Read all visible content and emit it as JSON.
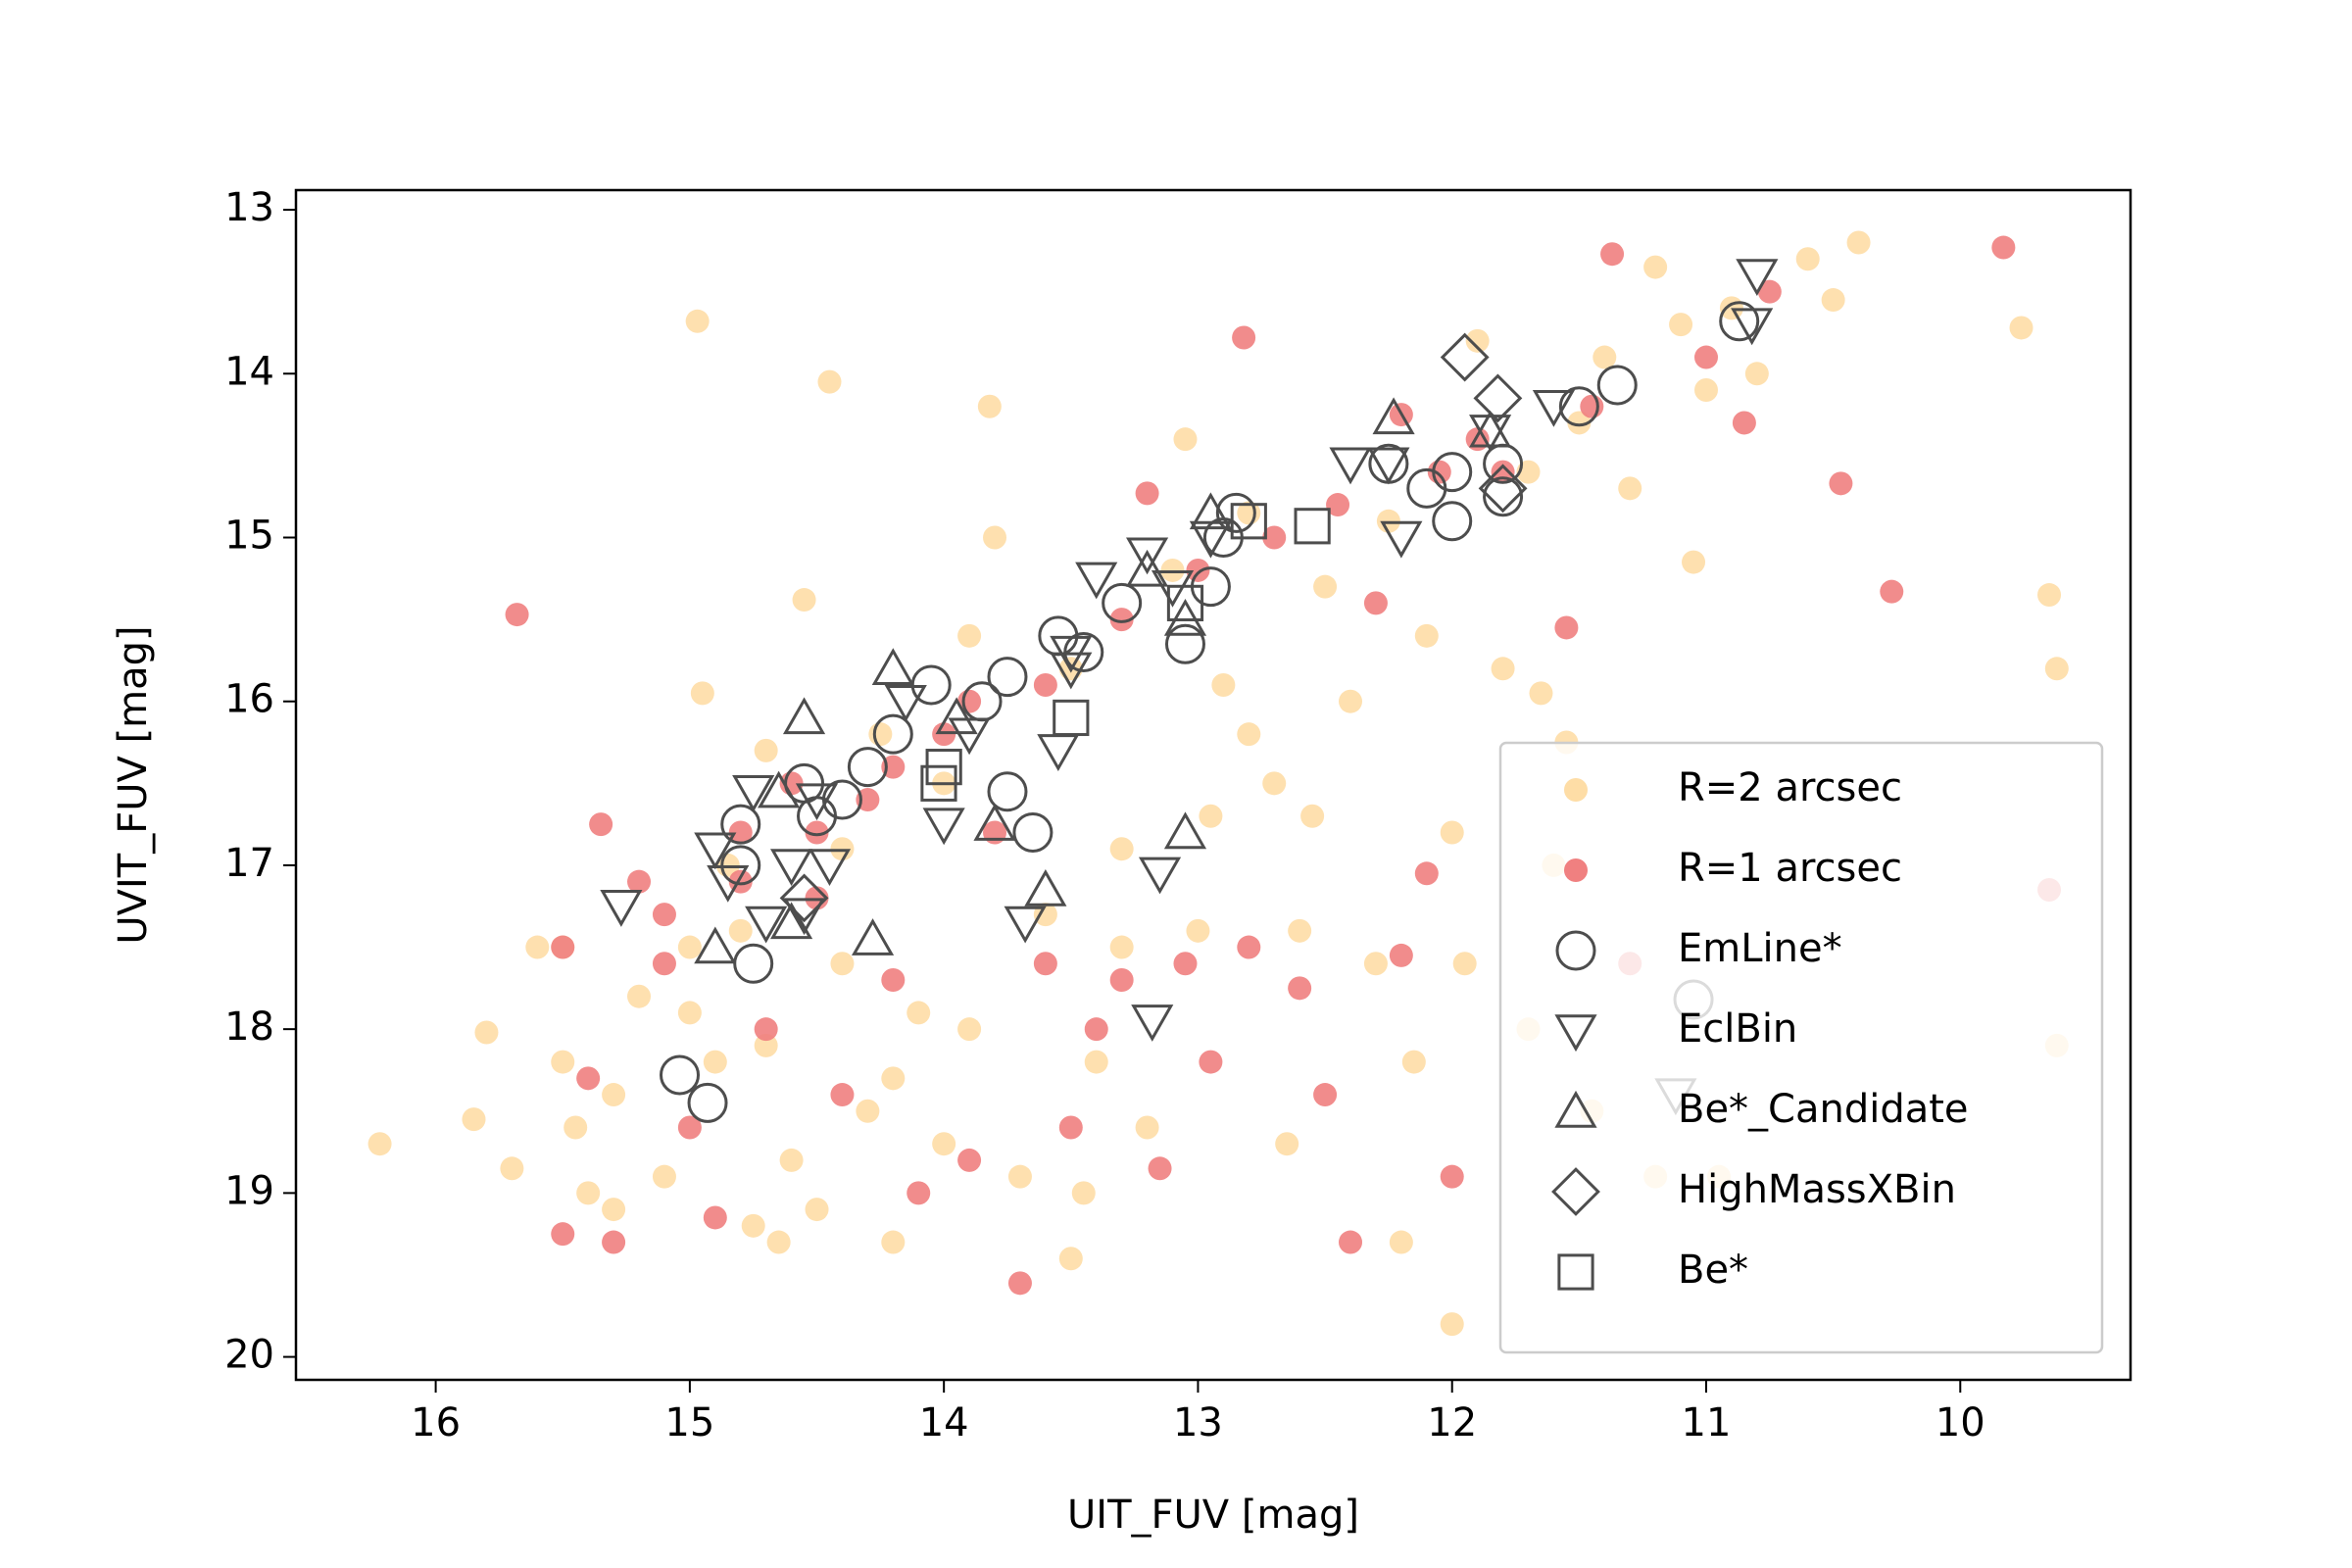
{
  "chart_data": {
    "type": "scatter",
    "xlabel": "UIT_FUV [mag]",
    "ylabel": "UVIT_FUV [mag]",
    "xlim": [
      16.55,
      9.33
    ],
    "ylim": [
      20.14,
      12.88
    ],
    "xticks": [
      16,
      15,
      14,
      13,
      12,
      11,
      10
    ],
    "yticks": [
      13,
      14,
      15,
      16,
      17,
      18,
      19,
      20
    ],
    "legend": "lower right",
    "series": [
      {
        "name": "R=2 arcsec",
        "color": "#fedda6",
        "marker": "dot",
        "x": [
          16.22,
          15.85,
          15.8,
          15.6,
          15.5,
          15.4,
          15.3,
          15.2,
          15.1,
          15.0,
          14.97,
          14.95,
          14.8,
          14.75,
          14.7,
          14.6,
          14.55,
          14.5,
          14.45,
          14.4,
          14.3,
          14.2,
          14.1,
          14.0,
          13.82,
          13.8,
          13.7,
          13.6,
          13.5,
          13.4,
          13.3,
          13.2,
          13.05,
          13.0,
          12.95,
          12.8,
          12.7,
          12.65,
          12.5,
          12.4,
          12.3,
          12.25,
          12.2,
          12.1,
          12.0,
          11.95,
          11.9,
          11.8,
          11.7,
          11.65,
          11.55,
          11.5,
          11.45,
          11.4,
          11.3,
          11.2,
          11.1,
          11.05,
          11.0,
          10.9,
          10.8,
          10.6,
          10.5,
          10.4,
          9.76,
          9.65,
          9.62,
          9.62,
          12.0,
          12.55,
          12.9,
          13.9,
          14.25,
          14.7,
          14.85,
          15.7,
          15.3,
          14.65,
          13.45,
          12.15,
          11.6,
          12.8,
          13.1,
          13.5,
          14.0,
          14.4,
          15.0,
          15.5,
          15.45,
          14.9,
          14.2,
          13.9,
          13.3,
          12.6,
          11.2,
          11.7,
          10.95
        ],
        "values": [
          18.7,
          18.55,
          18.02,
          17.5,
          18.2,
          19.0,
          18.4,
          17.8,
          18.9,
          17.9,
          13.68,
          15.95,
          17.4,
          19.2,
          18.1,
          18.8,
          15.38,
          19.1,
          14.05,
          17.6,
          18.5,
          19.3,
          17.9,
          18.7,
          14.2,
          15.0,
          18.9,
          17.3,
          19.4,
          18.2,
          16.9,
          18.6,
          14.4,
          17.4,
          16.7,
          14.85,
          16.5,
          18.7,
          15.3,
          16.0,
          17.6,
          14.9,
          19.3,
          15.6,
          16.8,
          17.6,
          13.8,
          15.8,
          14.6,
          15.95,
          16.25,
          14.3,
          18.5,
          13.9,
          14.7,
          13.35,
          13.7,
          15.15,
          14.1,
          13.6,
          14.0,
          13.3,
          13.55,
          13.2,
          13.72,
          15.35,
          15.8,
          18.1,
          19.8,
          16.7,
          15.9,
          15.6,
          16.2,
          16.3,
          17.0,
          18.85,
          19.1,
          19.3,
          19.0,
          18.2,
          17.0,
          16.2,
          15.2,
          15.8,
          16.5,
          16.9,
          17.5,
          17.5,
          18.6,
          18.2,
          18.3,
          18.0,
          17.5,
          17.4,
          18.9,
          18.0,
          18.9
        ]
      },
      {
        "name": "R=1 arcsec",
        "color": "#f08080",
        "marker": "dot",
        "x": [
          15.68,
          15.35,
          15.5,
          15.4,
          15.3,
          15.5,
          15.2,
          15.1,
          15.0,
          14.9,
          14.8,
          14.7,
          14.6,
          14.5,
          14.4,
          14.3,
          14.2,
          14.1,
          14.0,
          13.9,
          13.8,
          13.7,
          13.6,
          13.5,
          13.4,
          13.3,
          13.2,
          13.15,
          13.05,
          12.95,
          12.82,
          12.8,
          12.6,
          12.5,
          12.4,
          12.3,
          12.2,
          12.1,
          12.0,
          11.8,
          11.55,
          11.45,
          11.37,
          11.3,
          11.0,
          10.85,
          10.75,
          10.47,
          10.27,
          9.83,
          9.65,
          12.05,
          12.2,
          12.7,
          13.0,
          13.3,
          13.6,
          13.9,
          14.2,
          14.5,
          14.8,
          15.1,
          12.45,
          11.9
        ],
        "values": [
          15.47,
          16.75,
          17.5,
          18.3,
          19.3,
          19.25,
          17.1,
          17.6,
          18.6,
          19.15,
          16.8,
          18.0,
          16.5,
          17.2,
          18.4,
          16.6,
          17.7,
          19.0,
          16.2,
          18.8,
          16.8,
          19.55,
          17.6,
          18.6,
          18.0,
          17.7,
          14.73,
          18.85,
          17.6,
          18.2,
          13.78,
          17.5,
          17.75,
          18.4,
          19.3,
          15.4,
          17.55,
          17.05,
          18.9,
          14.6,
          15.55,
          14.2,
          13.27,
          17.6,
          13.9,
          14.3,
          13.5,
          14.67,
          15.33,
          13.23,
          17.15,
          14.6,
          14.25,
          15.0,
          15.2,
          15.5,
          15.9,
          16.0,
          16.4,
          16.8,
          17.1,
          17.3,
          14.8,
          14.4
        ]
      },
      {
        "name": "EmLine*",
        "color": "#4d4d4d",
        "marker": "circle",
        "x": [
          10.87,
          11.35,
          11.5,
          11.8,
          11.8,
          12.25,
          12.1,
          12.0,
          12.0,
          12.85,
          12.9,
          12.95,
          13.05,
          13.3,
          13.45,
          13.55,
          13.75,
          13.85,
          14.05,
          14.2,
          14.3,
          14.4,
          14.55,
          14.5,
          14.8,
          14.8,
          14.75,
          13.75,
          13.65,
          15.04,
          14.93,
          11.05
        ],
        "values": [
          13.68,
          14.07,
          14.2,
          14.55,
          14.75,
          14.55,
          14.7,
          14.6,
          14.9,
          14.85,
          15.0,
          15.3,
          15.65,
          15.4,
          15.7,
          15.6,
          15.85,
          16.0,
          15.9,
          16.2,
          16.4,
          16.6,
          16.5,
          16.7,
          16.75,
          17.0,
          17.6,
          16.55,
          16.8,
          18.28,
          18.45,
          17.82
        ]
      },
      {
        "name": "EclBin",
        "color": "#4d4d4d",
        "marker": "triangle-down",
        "x": [
          10.8,
          10.82,
          11.6,
          11.85,
          12.25,
          12.4,
          12.2,
          12.95,
          13.1,
          13.2,
          13.4,
          13.5,
          13.55,
          13.9,
          14.15,
          14.5,
          14.75,
          14.9,
          14.85,
          14.6,
          14.45,
          14.55,
          14.7,
          15.27,
          14.0,
          13.68,
          13.15,
          13.18,
          11.12,
          13.5
        ],
        "values": [
          13.4,
          13.7,
          14.2,
          14.35,
          14.55,
          14.55,
          15.0,
          15.0,
          15.3,
          15.1,
          15.25,
          15.8,
          16.3,
          16.2,
          16.0,
          16.6,
          16.55,
          16.9,
          17.1,
          17.0,
          17.0,
          17.3,
          17.35,
          17.25,
          16.75,
          17.35,
          17.05,
          17.95,
          18.4,
          15.7
        ]
      },
      {
        "name": "Be*_Candidate",
        "color": "#4d4d4d",
        "marker": "triangle-up",
        "x": [
          12.23,
          11.85,
          12.95,
          13.2,
          14.2,
          14.55,
          14.65,
          14.6,
          14.9,
          14.28,
          13.6,
          13.05,
          13.8,
          13.05,
          13.95
        ],
        "values": [
          14.27,
          14.35,
          14.85,
          15.2,
          15.8,
          16.1,
          16.55,
          17.35,
          17.5,
          17.45,
          17.15,
          16.8,
          16.75,
          15.5,
          16.1
        ]
      },
      {
        "name": "HighMassXBin",
        "color": "#4d4d4d",
        "marker": "diamond",
        "x": [
          11.95,
          11.82,
          11.8,
          14.55
        ],
        "values": [
          13.9,
          14.15,
          14.7,
          17.2
        ]
      },
      {
        "name": "Be*",
        "color": "#4d4d4d",
        "marker": "square",
        "x": [
          12.55,
          12.8,
          13.5,
          14.02,
          14.0,
          13.05
        ],
        "values": [
          14.93,
          14.9,
          16.1,
          16.5,
          16.4,
          15.4
        ]
      }
    ]
  }
}
